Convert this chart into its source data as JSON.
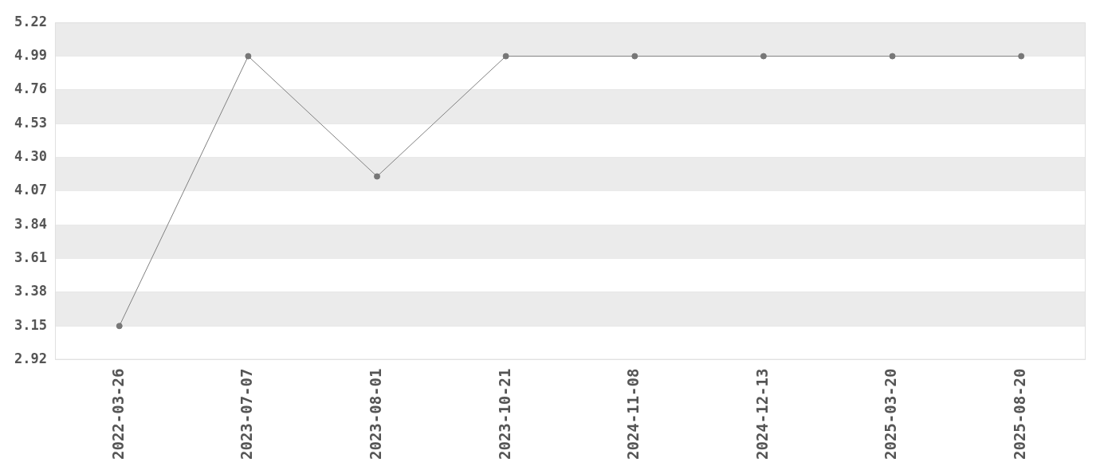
{
  "chart_data": {
    "type": "line",
    "categories": [
      "2022-03-26",
      "2023-07-07",
      "2023-08-01",
      "2023-10-21",
      "2024-11-08",
      "2024-12-13",
      "2025-03-20",
      "2025-08-20"
    ],
    "series": [
      {
        "color": "#808080",
        "values": [
          3.15,
          4.99,
          4.17,
          4.99,
          4.99,
          4.99,
          4.99,
          4.99
        ]
      }
    ],
    "ylim": [
      2.92,
      5.22
    ],
    "yticks": [
      {
        "value": 2.92,
        "label": "2.92"
      },
      {
        "value": 3.15,
        "label": "3.15"
      },
      {
        "value": 3.38,
        "label": "3.38"
      },
      {
        "value": 3.61,
        "label": "3.61"
      },
      {
        "value": 3.84,
        "label": "3.84"
      },
      {
        "value": 4.07,
        "label": "4.07"
      },
      {
        "value": 4.3,
        "label": "4.30"
      },
      {
        "value": 4.53,
        "label": "4.53"
      },
      {
        "value": 4.76,
        "label": "4.76"
      },
      {
        "value": 4.99,
        "label": "4.99"
      },
      {
        "value": 5.22,
        "label": "5.22"
      }
    ],
    "grid": true,
    "legend": false,
    "marker": "circle",
    "line_style": "solid"
  }
}
